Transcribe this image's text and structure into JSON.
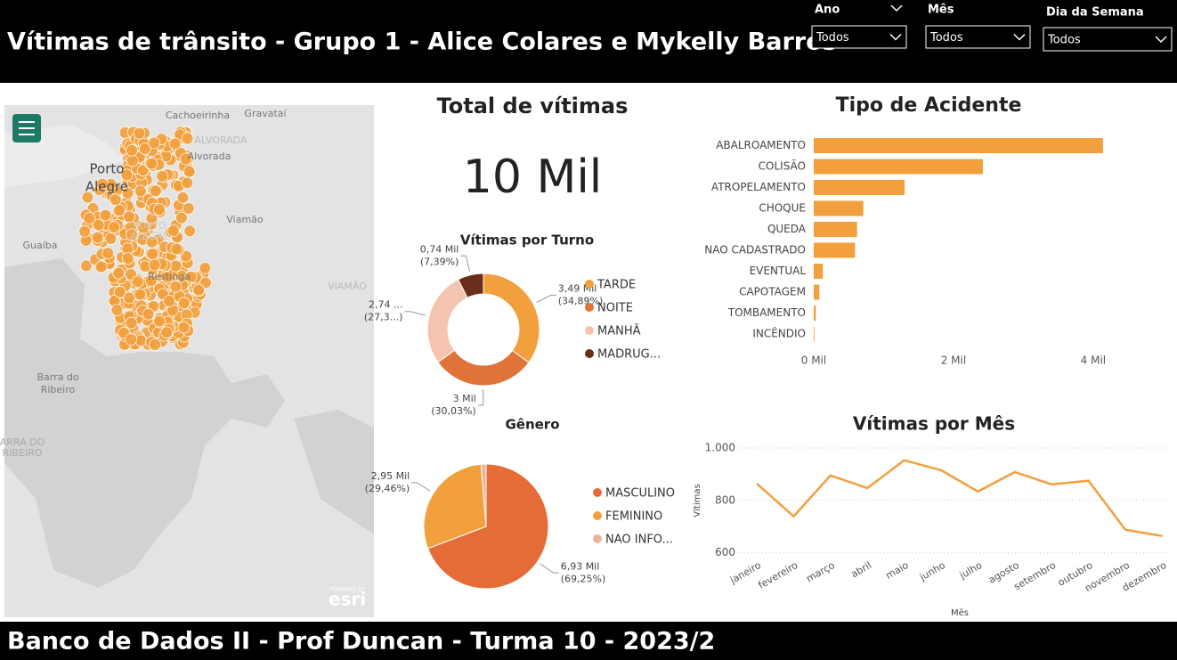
{
  "header": {
    "title": "Vítimas de trânsito - Grupo 1 - Alice Colares e Mykelly Barros"
  },
  "slicers": [
    {
      "label": "Ano",
      "value": "Todos"
    },
    {
      "label": "Mês",
      "value": "Todos"
    },
    {
      "label": "Dia da Semana",
      "value": "Todos"
    }
  ],
  "footer": {
    "text": "Banco de Dados II - Prof Duncan - Turma 10 - 2023/2"
  },
  "kpi": {
    "title": "Total de vítimas",
    "value": "10 Mil"
  },
  "map": {
    "labels": [
      "Cachoeirinha",
      "Gravataí",
      "ALVORADA",
      "Alvorada",
      "Porto",
      "Alegre",
      "PORTO",
      "ALEGRE",
      "Viamão",
      "Guaíba",
      "Restinga",
      "VIAMÃO",
      "Barra do",
      "Ribeiro",
      "ARRA DO",
      "RIBEIRO"
    ],
    "logo_caption": "POWERED BY",
    "logo": "esri"
  },
  "chart_data": [
    {
      "type": "donut",
      "title": "Vítimas por Turno",
      "categories": [
        "TARDE",
        "NOITE",
        "MANHÃ",
        "MADRUG..."
      ],
      "values": [
        3.49,
        3,
        2.74,
        0.74
      ],
      "value_labels": [
        "3,49 Mil",
        "3 Mil",
        "2,74 ...",
        "0,74 Mil"
      ],
      "percent_labels": [
        "(34,89%)",
        "(30,03%)",
        "(27,3...)",
        "(7,39%)"
      ],
      "colors": [
        "#f2a03d",
        "#e0733a",
        "#f4c4b0",
        "#6b2e1a"
      ]
    },
    {
      "type": "pie",
      "title": "Gênero",
      "categories": [
        "MASCULINO",
        "FEMININO",
        "NAO INFO..."
      ],
      "values": [
        6.93,
        2.95,
        0.13
      ],
      "value_labels": [
        "6,93 Mil",
        "2,95 Mil",
        null
      ],
      "percent_labels": [
        "(69,25%)",
        "(29,46%)",
        null
      ],
      "colors": [
        "#e66c37",
        "#f2a03d",
        "#e8b49a"
      ]
    },
    {
      "type": "bar",
      "orientation": "horizontal",
      "title": "Tipo de Acidente",
      "categories": [
        "ABALROAMENTO",
        "COLISÃO",
        "ATROPELAMENTO",
        "CHOQUE",
        "QUEDA",
        "NAO CADASTRADO",
        "EVENTUAL",
        "CAPOTAGEM",
        "TOMBAMENTO",
        "INCÊNDIO"
      ],
      "values": [
        4.14,
        2.42,
        1.3,
        0.71,
        0.62,
        0.59,
        0.13,
        0.08,
        0.03,
        0.01
      ],
      "color": "#f2a03d",
      "xlim": [
        0,
        4.6
      ],
      "xticks": [
        {
          "value": 0,
          "label": "0 Mil"
        },
        {
          "value": 2,
          "label": "2 Mil"
        },
        {
          "value": 4,
          "label": "4 Mil"
        }
      ]
    },
    {
      "type": "line",
      "title": "Vítimas por Mês",
      "x_label": "Mês",
      "y_label": "Vítimas",
      "categories": [
        "janeiro",
        "fevereiro",
        "março",
        "abril",
        "maio",
        "junho",
        "julho",
        "agosto",
        "setembro",
        "outubro",
        "novembro",
        "dezembro"
      ],
      "values": [
        864,
        739,
        895,
        847,
        953,
        915,
        834,
        908,
        861,
        875,
        688,
        664
      ],
      "color": "#f2a03d",
      "ylim": [
        585,
        1010
      ],
      "yticks": [
        {
          "value": 1000,
          "label": "1.000"
        },
        800,
        600
      ],
      "grid": true
    }
  ]
}
